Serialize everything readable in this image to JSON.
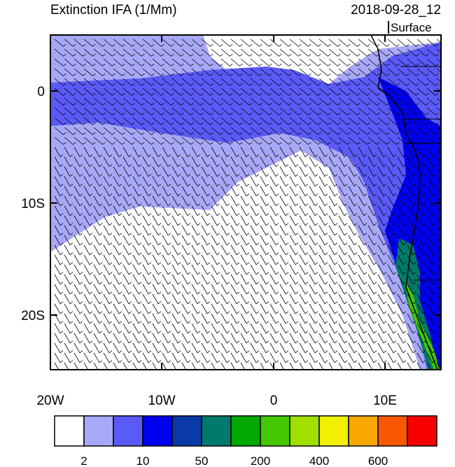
{
  "header": {
    "title": "Extinction IFA (1/Mm)",
    "time": "2018-09-28_12",
    "level": "Surface"
  },
  "map": {
    "lat_labels": [
      "0",
      "10S",
      "20S"
    ],
    "lon_labels": [
      "20W",
      "10W",
      "0",
      "10E"
    ]
  },
  "colorbar": {
    "colors": [
      "#ffffff",
      "#a8a8f8",
      "#5a5af8",
      "#0000f0",
      "#0a3aa8",
      "#007a6a",
      "#00a800",
      "#44c800",
      "#a0e000",
      "#f0f000",
      "#f8a800",
      "#f85800",
      "#f80000"
    ],
    "labels": [
      "2",
      "10",
      "50",
      "200",
      "400",
      "600"
    ]
  }
}
